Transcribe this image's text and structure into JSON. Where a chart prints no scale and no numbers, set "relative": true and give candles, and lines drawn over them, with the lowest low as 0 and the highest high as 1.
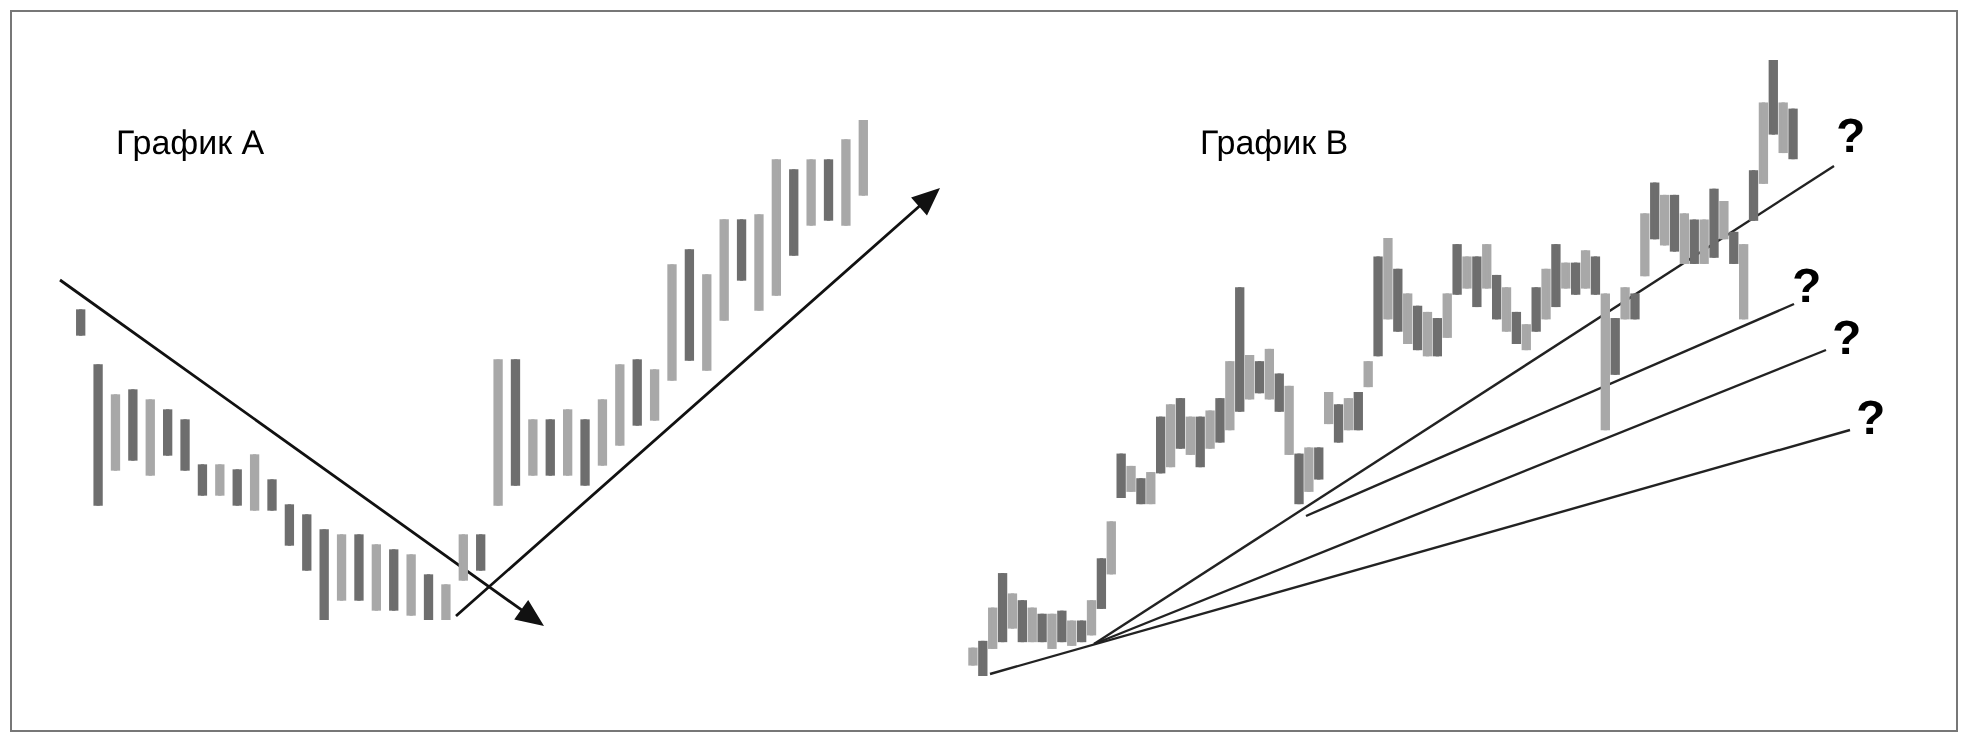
{
  "chart_data": [
    {
      "type": "candlestick",
      "title": "График A",
      "relative": true,
      "colors": [
        "#6e6e6e",
        "#6e6e6e",
        "#a8a8a8",
        "#6e6e6e",
        "#a8a8a8",
        "#6e6e6e",
        "#6e6e6e",
        "#6e6e6e",
        "#a8a8a8",
        "#6e6e6e",
        "#a8a8a8",
        "#6e6e6e",
        "#6e6e6e",
        "#6e6e6e",
        "#6e6e6e",
        "#a8a8a8",
        "#6e6e6e",
        "#a8a8a8",
        "#6e6e6e",
        "#a8a8a8",
        "#6e6e6e",
        "#a8a8a8",
        "#a8a8a8",
        "#6e6e6e",
        "#a8a8a8",
        "#6e6e6e",
        "#a8a8a8",
        "#6e6e6e",
        "#a8a8a8",
        "#6e6e6e",
        "#a8a8a8",
        "#a8a8a8",
        "#6e6e6e",
        "#a8a8a8",
        "#a8a8a8",
        "#6e6e6e",
        "#a8a8a8",
        "#a8a8a8",
        "#6e6e6e",
        "#a8a8a8",
        "#a8a8a8",
        "#6e6e6e",
        "#a8a8a8",
        "#6e6e6e",
        "#a8a8a8",
        "#a8a8a8"
      ],
      "categories": [
        null,
        null,
        null,
        null,
        null,
        null,
        null,
        null,
        null,
        null,
        null,
        null,
        null,
        null,
        null,
        null,
        null,
        null,
        null,
        null,
        null,
        null,
        null,
        null,
        null,
        null,
        null,
        null,
        null,
        null,
        null,
        null,
        null,
        null,
        null,
        null,
        null,
        null,
        null,
        null,
        null,
        null,
        null,
        null,
        null,
        null
      ],
      "ohlc": [
        [
          0.62,
          0.62,
          0.57,
          0.57
        ],
        [
          0.51,
          0.51,
          0.23,
          0.23
        ],
        [
          0.3,
          0.45,
          0.3,
          0.45
        ],
        [
          0.46,
          0.46,
          0.32,
          0.32
        ],
        [
          0.29,
          0.44,
          0.29,
          0.44
        ],
        [
          0.42,
          0.42,
          0.33,
          0.33
        ],
        [
          0.4,
          0.4,
          0.3,
          0.3
        ],
        [
          0.31,
          0.31,
          0.25,
          0.25
        ],
        [
          0.25,
          0.31,
          0.25,
          0.31
        ],
        [
          0.3,
          0.3,
          0.23,
          0.23
        ],
        [
          0.22,
          0.33,
          0.22,
          0.33
        ],
        [
          0.28,
          0.28,
          0.22,
          0.22
        ],
        [
          0.23,
          0.23,
          0.15,
          0.15
        ],
        [
          0.21,
          0.21,
          0.1,
          0.1
        ],
        [
          0.18,
          0.18,
          0,
          0
        ],
        [
          0.04,
          0.17,
          0.04,
          0.17
        ],
        [
          0.17,
          0.17,
          0.04,
          0.04
        ],
        [
          0.02,
          0.15,
          0.02,
          0.15
        ],
        [
          0.14,
          0.14,
          0.02,
          0.02
        ],
        [
          0.01,
          0.13,
          0.01,
          0.13
        ],
        [
          0.09,
          0.09,
          0,
          0
        ],
        [
          0,
          0.07,
          0,
          0.07
        ],
        [
          0.08,
          0.17,
          0.08,
          0.17
        ],
        [
          0.17,
          0.17,
          0.1,
          0.1
        ],
        [
          0.23,
          0.52,
          0.23,
          0.52
        ],
        [
          0.52,
          0.52,
          0.27,
          0.27
        ],
        [
          0.29,
          0.4,
          0.29,
          0.4
        ],
        [
          0.4,
          0.4,
          0.29,
          0.29
        ],
        [
          0.29,
          0.42,
          0.29,
          0.42
        ],
        [
          0.4,
          0.4,
          0.27,
          0.27
        ],
        [
          0.31,
          0.44,
          0.31,
          0.44
        ],
        [
          0.35,
          0.51,
          0.35,
          0.51
        ],
        [
          0.52,
          0.52,
          0.39,
          0.39
        ],
        [
          0.4,
          0.5,
          0.4,
          0.5
        ],
        [
          0.48,
          0.71,
          0.48,
          0.71
        ],
        [
          0.74,
          0.74,
          0.52,
          0.52
        ],
        [
          0.5,
          0.69,
          0.5,
          0.69
        ],
        [
          0.6,
          0.8,
          0.6,
          0.8
        ],
        [
          0.8,
          0.8,
          0.68,
          0.68
        ],
        [
          0.62,
          0.81,
          0.62,
          0.81
        ],
        [
          0.65,
          0.92,
          0.65,
          0.92
        ],
        [
          0.9,
          0.9,
          0.73,
          0.73
        ],
        [
          0.79,
          0.92,
          0.79,
          0.92
        ],
        [
          0.92,
          0.92,
          0.8,
          0.8
        ],
        [
          0.79,
          0.96,
          0.79,
          0.96
        ],
        [
          0.85,
          1,
          0.85,
          1
        ]
      ]
    },
    {
      "type": "candlestick",
      "title": "График B",
      "relative": true,
      "annotations": [
        "?",
        "?",
        "?",
        "?"
      ],
      "colors": [
        "#a8a8a8",
        "#6e6e6e",
        "#a8a8a8",
        "#6e6e6e",
        "#a8a8a8",
        "#6e6e6e",
        "#a8a8a8",
        "#6e6e6e",
        "#a8a8a8",
        "#6e6e6e",
        "#a8a8a8",
        "#6e6e6e",
        "#a8a8a8",
        "#6e6e6e",
        "#a8a8a8",
        "#6e6e6e",
        "#a8a8a8",
        "#6e6e6e",
        "#a8a8a8",
        "#6e6e6e",
        "#a8a8a8",
        "#6e6e6e",
        "#a8a8a8",
        "#6e6e6e",
        "#a8a8a8",
        "#6e6e6e",
        "#a8a8a8",
        "#6e6e6e",
        "#a8a8a8",
        "#6e6e6e",
        "#a8a8a8",
        "#6e6e6e",
        "#a8a8a8",
        "#6e6e6e",
        "#a8a8a8",
        "#6e6e6e",
        "#a8a8a8",
        "#6e6e6e",
        "#a8a8a8",
        "#6e6e6e",
        "#a8a8a8",
        "#6e6e6e",
        "#a8a8a8",
        "#6e6e6e",
        "#a8a8a8",
        "#6e6e6e",
        "#a8a8a8",
        "#6e6e6e",
        "#a8a8a8",
        "#6e6e6e",
        "#a8a8a8",
        "#6e6e6e",
        "#a8a8a8",
        "#6e6e6e",
        "#a8a8a8",
        "#6e6e6e",
        "#a8a8a8",
        "#6e6e6e",
        "#a8a8a8",
        "#6e6e6e",
        "#a8a8a8",
        "#6e6e6e",
        "#a8a8a8",
        "#6e6e6e",
        "#a8a8a8",
        "#6e6e6e",
        "#a8a8a8",
        "#6e6e6e",
        "#a8a8a8",
        "#6e6e6e",
        "#a8a8a8",
        "#6e6e6e",
        "#a8a8a8",
        "#6e6e6e",
        "#a8a8a8",
        "#6e6e6e",
        "#a8a8a8",
        "#6e6e6e",
        "#a8a8a8",
        "#6e6e6e",
        "#a8a8a8",
        "#6e6e6e",
        "#a8a8a8",
        "#6e6e6e"
      ],
      "categories": [
        null,
        null,
        null,
        null,
        null,
        null,
        null,
        null,
        null,
        null,
        null,
        null,
        null,
        null,
        null,
        null,
        null,
        null,
        null,
        null,
        null,
        null,
        null,
        null,
        null,
        null,
        null,
        null,
        null,
        null,
        null,
        null,
        null,
        null,
        null,
        null,
        null,
        null,
        null,
        null,
        null,
        null,
        null,
        null,
        null,
        null,
        null,
        null,
        null,
        null,
        null,
        null,
        null,
        null,
        null,
        null,
        null,
        null,
        null,
        null,
        null,
        null,
        null,
        null,
        null,
        null,
        null,
        null,
        null,
        null,
        null,
        null,
        null,
        null,
        null,
        null,
        null,
        null,
        null,
        null,
        null,
        null,
        null,
        null
      ],
      "ohlc": [
        [
          0.018,
          0.045,
          0.018,
          0.045
        ],
        [
          0.056,
          0.056,
          0,
          0
        ],
        [
          0.045,
          0.11,
          0.045,
          0.11
        ],
        [
          0.166,
          0.166,
          0.056,
          0.056
        ],
        [
          0.078,
          0.133,
          0.078,
          0.133
        ],
        [
          0.122,
          0.122,
          0.056,
          0.056
        ],
        [
          0.056,
          0.11,
          0.056,
          0.11
        ],
        [
          0.1,
          0.1,
          0.056,
          0.056
        ],
        [
          0.045,
          0.1,
          0.045,
          0.1
        ],
        [
          0.105,
          0.105,
          0.056,
          0.056
        ],
        [
          0.05,
          0.089,
          0.05,
          0.089
        ],
        [
          0.089,
          0.089,
          0.056,
          0.056
        ],
        [
          0.067,
          0.122,
          0.067,
          0.122
        ],
        [
          0.19,
          0.19,
          0.11,
          0.11
        ],
        [
          0.166,
          0.25,
          0.166,
          0.25
        ],
        [
          0.36,
          0.36,
          0.29,
          0.29
        ],
        [
          0.3,
          0.34,
          0.3,
          0.34
        ],
        [
          0.32,
          0.32,
          0.28,
          0.28
        ],
        [
          0.28,
          0.33,
          0.28,
          0.33
        ],
        [
          0.42,
          0.42,
          0.33,
          0.33
        ],
        [
          0.34,
          0.44,
          0.34,
          0.44
        ],
        [
          0.45,
          0.45,
          0.37,
          0.37
        ],
        [
          0.36,
          0.42,
          0.36,
          0.42
        ],
        [
          0.42,
          0.42,
          0.34,
          0.34
        ],
        [
          0.37,
          0.43,
          0.37,
          0.43
        ],
        [
          0.45,
          0.45,
          0.38,
          0.38
        ],
        [
          0.4,
          0.51,
          0.4,
          0.51
        ],
        [
          0.63,
          0.63,
          0.43,
          0.43
        ],
        [
          0.45,
          0.52,
          0.45,
          0.52
        ],
        [
          0.51,
          0.51,
          0.46,
          0.46
        ],
        [
          0.45,
          0.53,
          0.45,
          0.53
        ],
        [
          0.49,
          0.49,
          0.43,
          0.43
        ],
        [
          0.36,
          0.47,
          0.36,
          0.47
        ],
        [
          0.36,
          0.36,
          0.28,
          0.28
        ],
        [
          0.3,
          0.37,
          0.3,
          0.37
        ],
        [
          0.37,
          0.37,
          0.32,
          0.32
        ],
        [
          0.41,
          0.46,
          0.41,
          0.46
        ],
        [
          0.44,
          0.44,
          0.38,
          0.38
        ],
        [
          0.4,
          0.45,
          0.4,
          0.45
        ],
        [
          0.46,
          0.46,
          0.4,
          0.4
        ],
        [
          0.47,
          0.51,
          0.47,
          0.51
        ],
        [
          0.68,
          0.68,
          0.52,
          0.52
        ],
        [
          0.58,
          0.71,
          0.58,
          0.71
        ],
        [
          0.66,
          0.66,
          0.56,
          0.56
        ],
        [
          0.54,
          0.62,
          0.54,
          0.62
        ],
        [
          0.6,
          0.6,
          0.53,
          0.53
        ],
        [
          0.52,
          0.59,
          0.52,
          0.59
        ],
        [
          0.58,
          0.58,
          0.52,
          0.52
        ],
        [
          0.55,
          0.62,
          0.55,
          0.62
        ],
        [
          0.7,
          0.7,
          0.62,
          0.62
        ],
        [
          0.63,
          0.68,
          0.63,
          0.68
        ],
        [
          0.68,
          0.68,
          0.6,
          0.6
        ],
        [
          0.63,
          0.7,
          0.63,
          0.7
        ],
        [
          0.65,
          0.65,
          0.58,
          0.58
        ],
        [
          0.56,
          0.63,
          0.56,
          0.63
        ],
        [
          0.59,
          0.59,
          0.54,
          0.54
        ],
        [
          0.53,
          0.57,
          0.53,
          0.57
        ],
        [
          0.63,
          0.63,
          0.56,
          0.56
        ],
        [
          0.58,
          0.66,
          0.58,
          0.66
        ],
        [
          0.7,
          0.7,
          0.6,
          0.6
        ],
        [
          0.63,
          0.67,
          0.63,
          0.67
        ],
        [
          0.67,
          0.67,
          0.62,
          0.62
        ],
        [
          0.63,
          0.69,
          0.63,
          0.69
        ],
        [
          0.68,
          0.68,
          0.62,
          0.62
        ],
        [
          0.4,
          0.62,
          0.4,
          0.62
        ],
        [
          0.58,
          0.58,
          0.49,
          0.49
        ],
        [
          0.58,
          0.63,
          0.58,
          0.63
        ],
        [
          0.62,
          0.62,
          0.58,
          0.58
        ],
        [
          0.65,
          0.75,
          0.65,
          0.75
        ],
        [
          0.8,
          0.8,
          0.71,
          0.71
        ],
        [
          0.7,
          0.78,
          0.7,
          0.78
        ],
        [
          0.78,
          0.78,
          0.69,
          0.69
        ],
        [
          0.67,
          0.75,
          0.67,
          0.75
        ],
        [
          0.74,
          0.74,
          0.67,
          0.67
        ],
        [
          0.67,
          0.74,
          0.67,
          0.74
        ],
        [
          0.79,
          0.79,
          0.68,
          0.68
        ],
        [
          0.71,
          0.77,
          0.71,
          0.77
        ],
        [
          0.72,
          0.72,
          0.67,
          0.67
        ],
        [
          0.58,
          0.7,
          0.58,
          0.7
        ],
        [
          0.82,
          0.82,
          0.74,
          0.74
        ],
        [
          0.8,
          0.93,
          0.8,
          0.93
        ],
        [
          1,
          1,
          0.88,
          0.88
        ],
        [
          0.85,
          0.93,
          0.85,
          0.93
        ],
        [
          0.92,
          0.92,
          0.84,
          0.84
        ]
      ]
    }
  ]
}
